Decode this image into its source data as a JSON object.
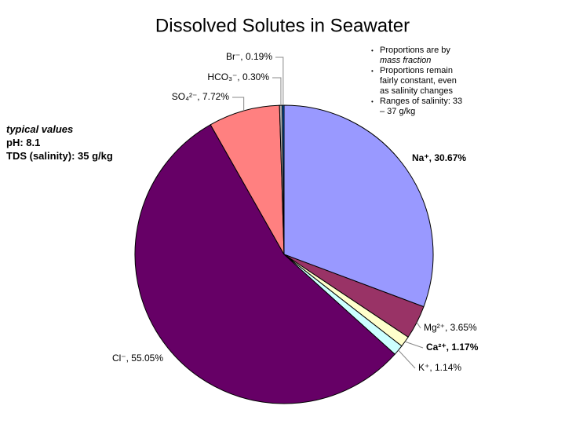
{
  "chart_data": {
    "type": "pie",
    "title": "Dissolved Solutes in Seawater",
    "values": [
      30.67,
      3.65,
      1.17,
      1.14,
      55.05,
      7.72,
      0.3,
      0.19
    ],
    "value_labels": [
      "Na⁺, 30.67%",
      "Mg²⁺, 3.65%",
      "Ca²⁺, 1.17%",
      "K⁺, 1.14%",
      "Cl⁻, 55.05%",
      "SO₄²⁻, 7.72%",
      "HCO₃⁻, 0.30%",
      "Br⁻, 0.19%"
    ],
    "colors": [
      "#9999ff",
      "#993366",
      "#ffffcc",
      "#ccffff",
      "#660066",
      "#ff8080",
      "#aaaaaa",
      "#0066cc"
    ],
    "start_angle": "top",
    "direction": "clockwise"
  },
  "notes": {
    "heading": "typical values",
    "lines": [
      "pH: 8.1",
      "TDS (salinity): 35 g/kg"
    ]
  },
  "bullets": [
    {
      "text": "Proportions are by",
      "emphasis": "mass fraction"
    },
    {
      "text": "Proportions remain fairly constant, even as salinity changes"
    },
    {
      "text": "Ranges of salinity: 33 – 37 g/kg"
    }
  ]
}
